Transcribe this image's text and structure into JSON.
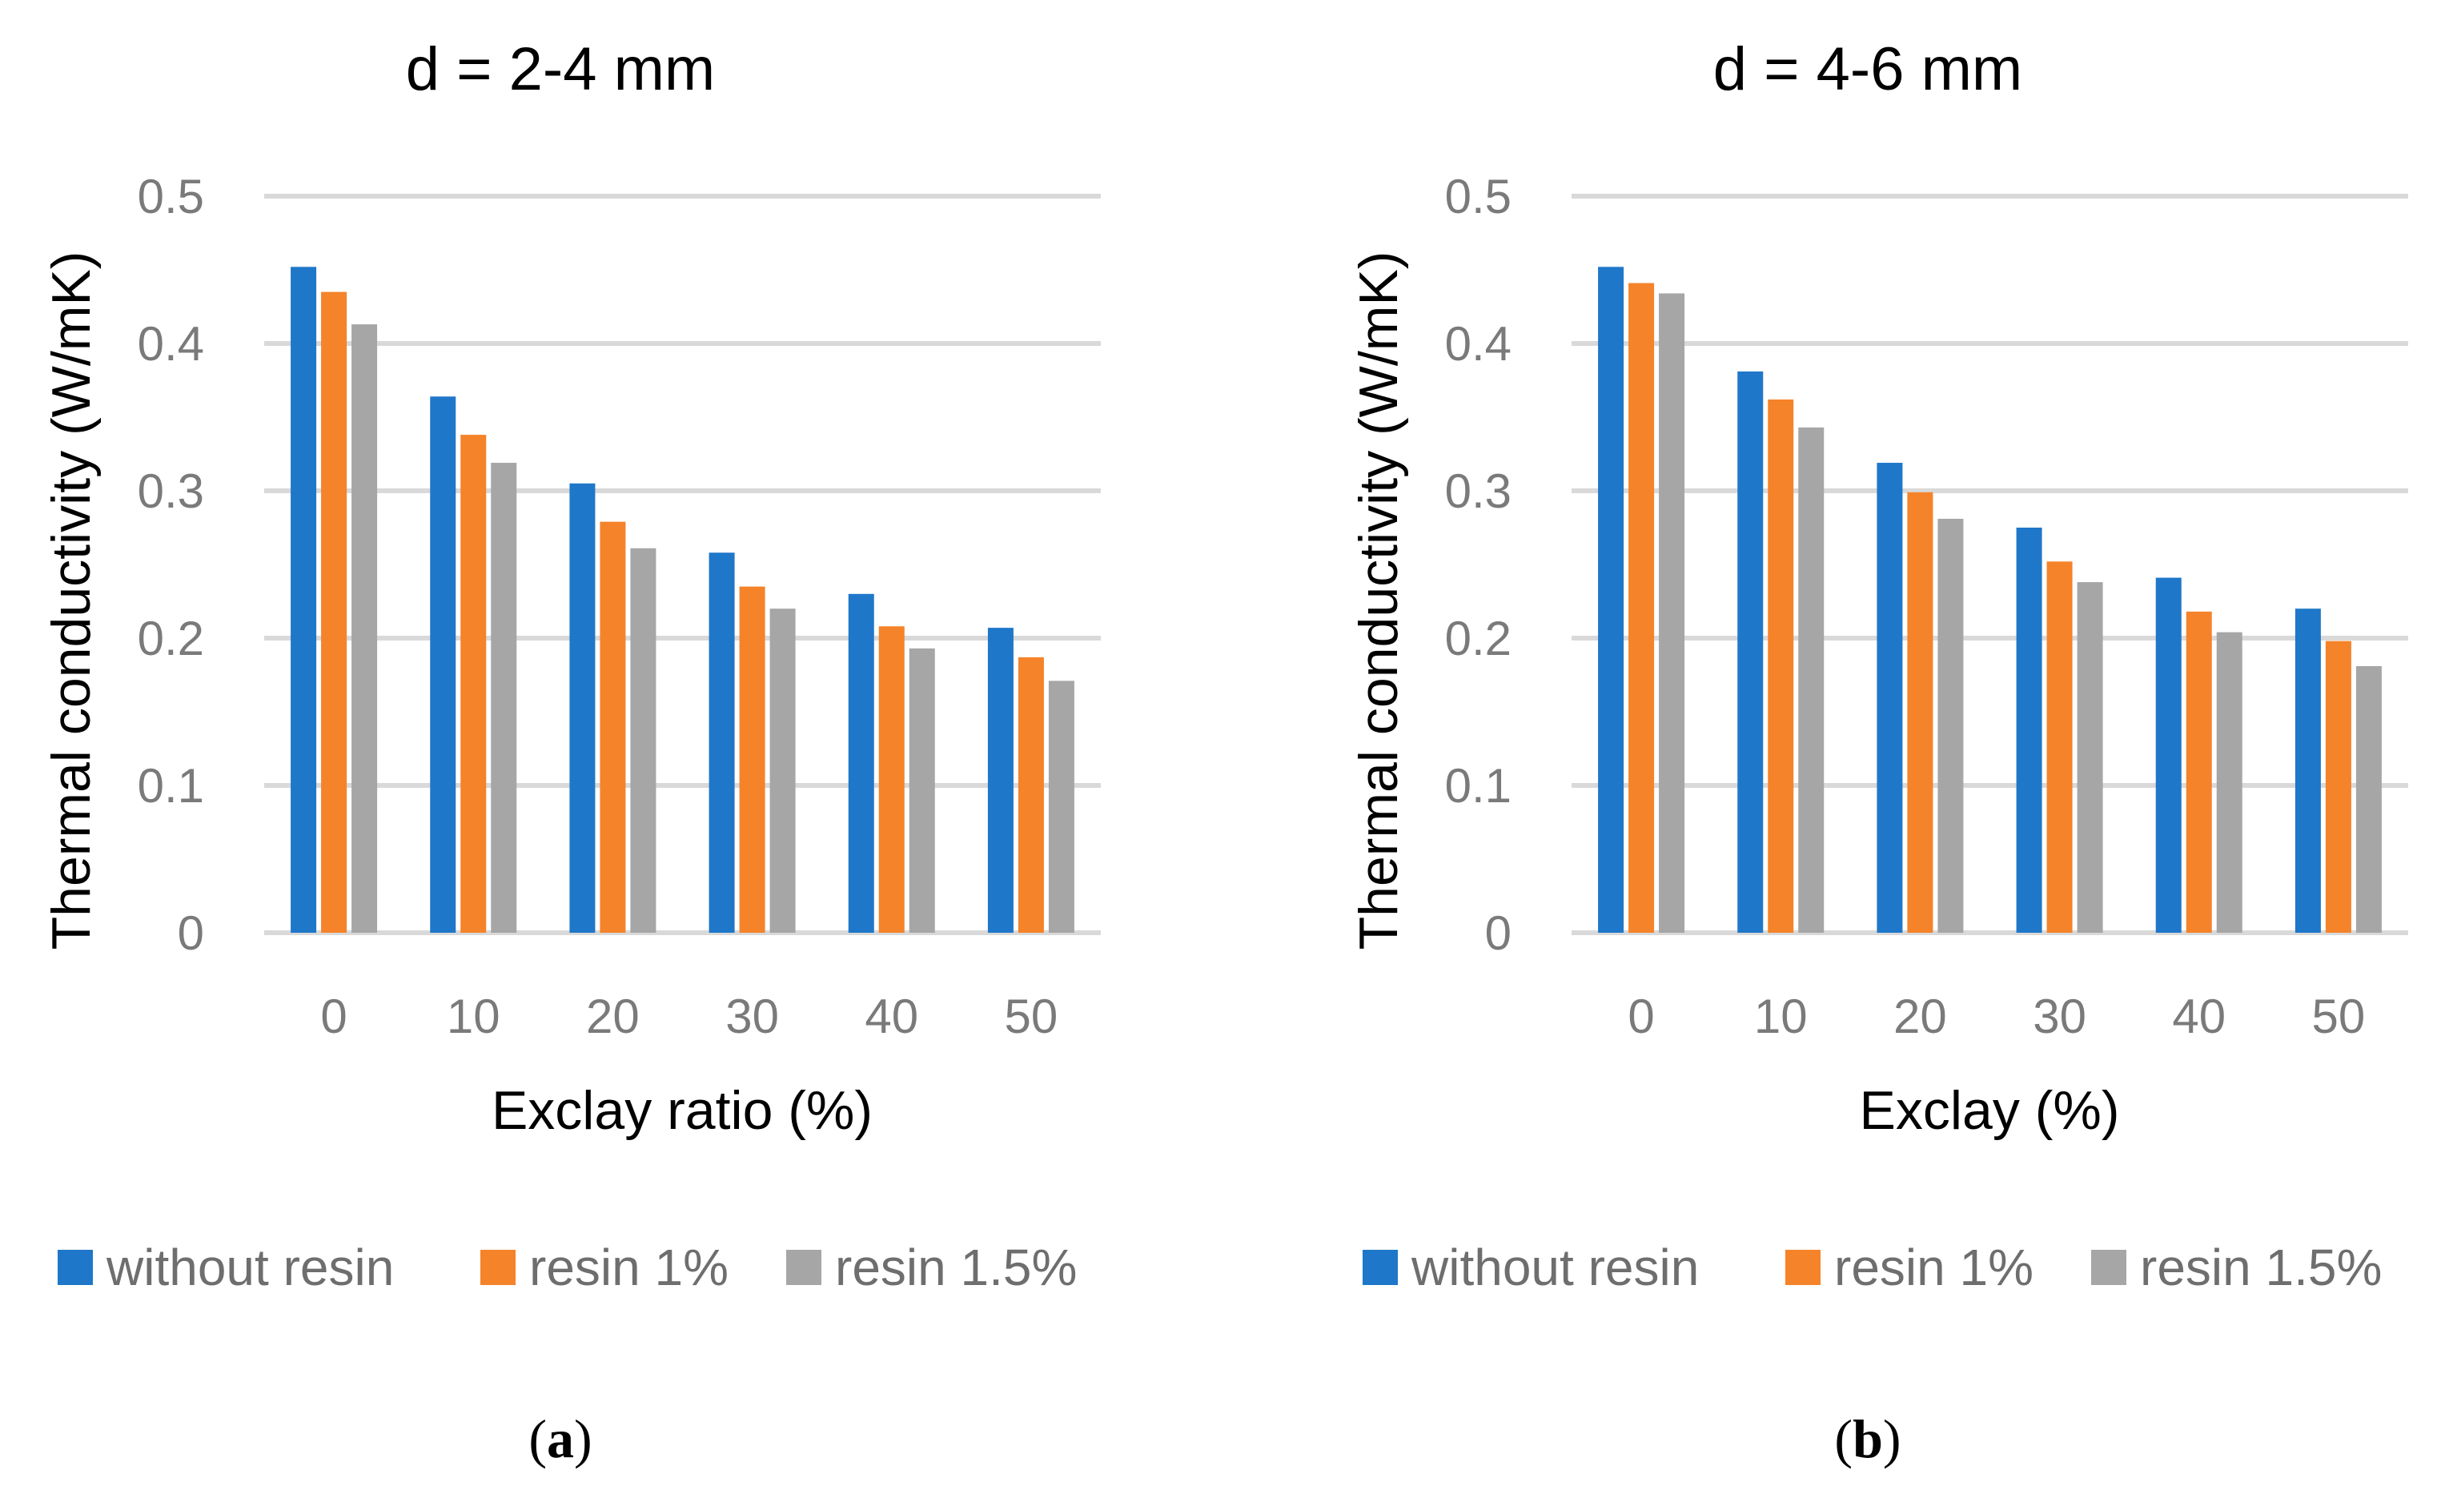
{
  "chart_data": [
    {
      "type": "bar",
      "title": "d = 2-4 mm",
      "xlabel": "Exclay ratio (%)",
      "ylabel": "Thermal conductivity (W/mK)",
      "ylim": [
        0,
        0.5
      ],
      "yticks": [
        "0",
        "0.1",
        "0.2",
        "0.3",
        "0.4",
        "0.5"
      ],
      "categories": [
        "0",
        "10",
        "20",
        "30",
        "40",
        "50"
      ],
      "grid": true,
      "legend_position": "bottom",
      "caption": "a",
      "series": [
        {
          "name": "without resin",
          "color": "#1f77c9",
          "values": [
            0.452,
            0.364,
            0.305,
            0.258,
            0.23,
            0.207
          ]
        },
        {
          "name": "resin 1%",
          "color": "#f5832a",
          "values": [
            0.435,
            0.338,
            0.279,
            0.235,
            0.208,
            0.187
          ]
        },
        {
          "name": "resin 1.5%",
          "color": "#a6a6a6",
          "values": [
            0.413,
            0.319,
            0.261,
            0.22,
            0.193,
            0.171
          ]
        }
      ]
    },
    {
      "type": "bar",
      "title": "d = 4-6 mm",
      "xlabel": "Exclay (%)",
      "ylabel": "Thermal conductivity (W/mK)",
      "ylim": [
        0,
        0.5
      ],
      "yticks": [
        "0",
        "0.1",
        "0.2",
        "0.3",
        "0.4",
        "0.5"
      ],
      "categories": [
        "0",
        "10",
        "20",
        "30",
        "40",
        "50"
      ],
      "grid": true,
      "legend_position": "bottom",
      "caption": "b",
      "series": [
        {
          "name": "without resin",
          "color": "#1f77c9",
          "values": [
            0.452,
            0.381,
            0.319,
            0.275,
            0.241,
            0.22
          ]
        },
        {
          "name": "resin 1%",
          "color": "#f5832a",
          "values": [
            0.441,
            0.362,
            0.299,
            0.252,
            0.218,
            0.198
          ]
        },
        {
          "name": "resin 1.5%",
          "color": "#a6a6a6",
          "values": [
            0.434,
            0.343,
            0.281,
            0.238,
            0.204,
            0.181
          ]
        }
      ]
    }
  ]
}
